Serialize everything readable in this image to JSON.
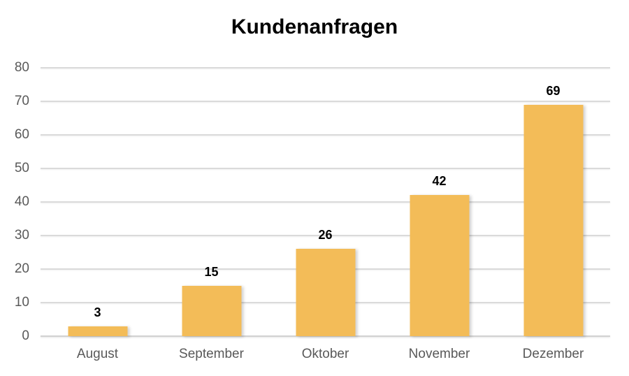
{
  "title": "Kundenanfragen",
  "chart_data": {
    "type": "bar",
    "title": "Kundenanfragen",
    "categories": [
      "August",
      "September",
      "Oktober",
      "November",
      "Dezember"
    ],
    "values": [
      3,
      15,
      26,
      42,
      69
    ],
    "xlabel": "",
    "ylabel": "",
    "ylim": [
      0,
      80
    ],
    "yticks": [
      0,
      10,
      20,
      30,
      40,
      50,
      60,
      70,
      80
    ],
    "grid": true,
    "legend_position": "none",
    "bar_color": "#f3bc58",
    "axis_label_color": "#595959",
    "value_label_color": "#000000",
    "gridline_color": "#dadada",
    "title_color": "#000000"
  }
}
